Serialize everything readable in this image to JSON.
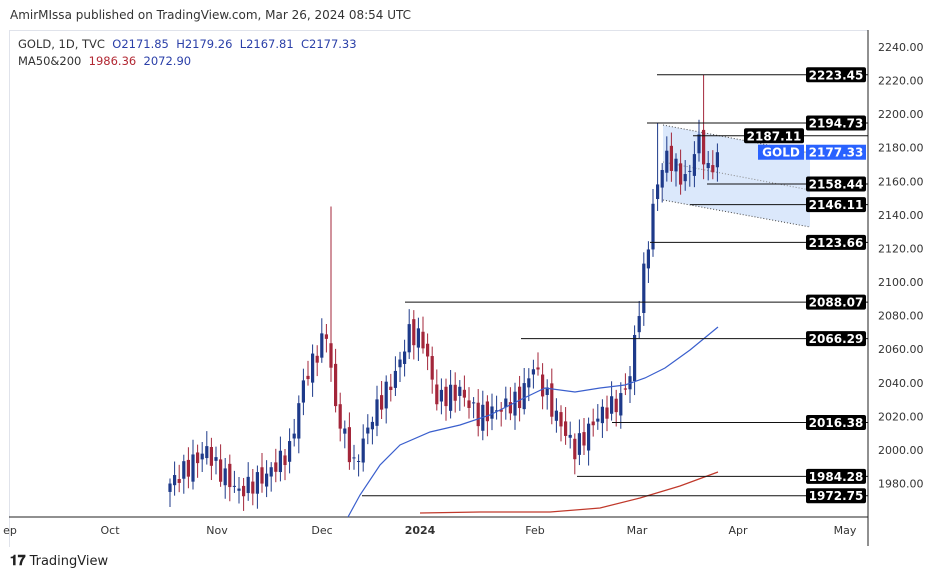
{
  "header": {
    "published": "AmirMIssa published on TradingView.com, Mar 26, 2024 08:54 UTC"
  },
  "legend": {
    "symbol": "GOLD, 1D, TVC",
    "open": "O2171.85",
    "high": "H2179.26",
    "low": "L2167.81",
    "close": "C2177.33",
    "ma_label": "MA50&200",
    "ma200": "1986.36",
    "ma50": "2072.90"
  },
  "footer": {
    "brand": "TradingView"
  },
  "colors": {
    "up": "#1e3a8a",
    "down": "#a3263a",
    "ma50": "#3a5fcd",
    "ma200": "#c0392b",
    "accent": "#2962ff"
  },
  "chart_data": {
    "type": "candlestick",
    "title": "GOLD, 1D, TVC",
    "current": {
      "symbol": "GOLD",
      "price": "2177.33"
    },
    "y_ticks": [
      "2240.00",
      "2220.00",
      "2200.00",
      "2180.00",
      "2160.00",
      "2140.00",
      "2120.00",
      "2100.00",
      "2080.00",
      "2060.00",
      "2040.00",
      "2020.00",
      "2000.00",
      "1980.00"
    ],
    "ylim": [
      1960,
      2250
    ],
    "x_ticks": [
      "ep",
      "Oct",
      "Nov",
      "Dec",
      "2024",
      "Feb",
      "Mar",
      "Apr",
      "May"
    ],
    "levels": [
      "2223.45",
      "2194.73",
      "2187.11",
      "2158.44",
      "2146.11",
      "2123.66",
      "2088.07",
      "2066.29",
      "2016.38",
      "1984.28",
      "1972.75"
    ],
    "close_keypoints": [
      [
        0,
        1980
      ],
      [
        8,
        2000
      ],
      [
        10,
        1990
      ],
      [
        15,
        1975
      ],
      [
        21,
        1985
      ],
      [
        26,
        2000
      ],
      [
        29,
        2040
      ],
      [
        34,
        2070
      ],
      [
        36,
        2025
      ],
      [
        40,
        1990
      ],
      [
        44,
        2020
      ],
      [
        49,
        2045
      ],
      [
        52,
        2070
      ],
      [
        55,
        2065
      ],
      [
        58,
        2030
      ],
      [
        63,
        2035
      ],
      [
        67,
        2020
      ],
      [
        72,
        2025
      ],
      [
        76,
        2030
      ],
      [
        79,
        2050
      ],
      [
        83,
        2025
      ],
      [
        88,
        2000
      ],
      [
        93,
        2020
      ],
      [
        98,
        2030
      ],
      [
        100,
        2045
      ],
      [
        102,
        2085
      ],
      [
        104,
        2125
      ],
      [
        106,
        2160
      ],
      [
        108,
        2175
      ],
      [
        112,
        2160
      ],
      [
        115,
        2185
      ],
      [
        117,
        2165
      ],
      [
        119,
        2177.33
      ]
    ]
  }
}
